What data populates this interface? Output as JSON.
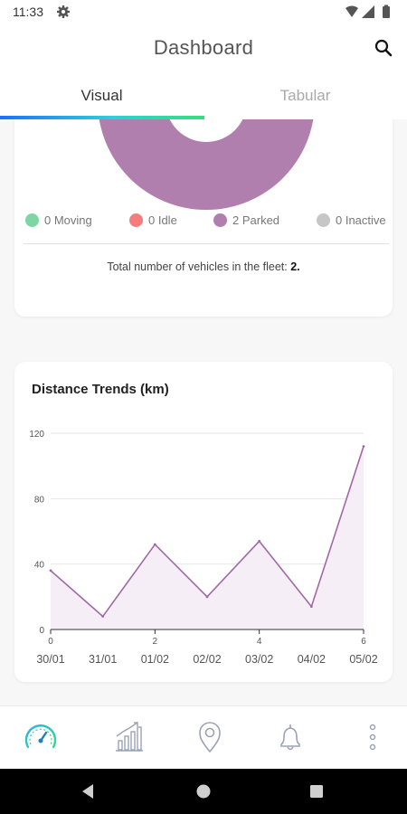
{
  "status_bar": {
    "time": "11:33",
    "icons": [
      "gear-icon",
      "wifi-icon",
      "signal-icon",
      "battery-icon"
    ]
  },
  "app_bar": {
    "title": "Dashboard",
    "action_icon": "search-icon"
  },
  "tabs": [
    {
      "label": "Visual",
      "selected": true
    },
    {
      "label": "Tabular",
      "selected": false
    }
  ],
  "colors": {
    "moving": "#7ed6a5",
    "idle": "#f47c7c",
    "parked": "#b07fad",
    "inactive": "#c6c6c6",
    "line": "#a069a6",
    "area": "#f6eef6",
    "tab_indicator_start": "#1e6fff",
    "tab_indicator_end": "#35e07a"
  },
  "fleet_status": {
    "legend": [
      {
        "label": "0 Moving",
        "key": "moving"
      },
      {
        "label": "0 Idle",
        "key": "idle"
      },
      {
        "label": "2 Parked",
        "key": "parked"
      },
      {
        "label": "0 Inactive",
        "key": "inactive"
      }
    ],
    "total_label": "Total number of vehicles in the fleet:",
    "total_value": "2."
  },
  "chart_data": {
    "type": "area",
    "title": "Distance Trends (km)",
    "x": [
      0,
      1,
      2,
      3,
      4,
      5,
      6
    ],
    "categories": [
      "30/01",
      "31/01",
      "01/02",
      "02/02",
      "03/02",
      "04/02",
      "05/02"
    ],
    "x_ticks": [
      0,
      2,
      4,
      6
    ],
    "values": [
      36,
      8,
      52,
      20,
      54,
      14,
      112
    ],
    "ylim": [
      0,
      120
    ],
    "y_ticks": [
      0,
      40,
      80,
      120
    ],
    "grid": true,
    "legend": "none"
  },
  "bottom_nav": [
    {
      "icon": "speedometer-icon",
      "active": true
    },
    {
      "icon": "bar-chart-icon",
      "active": false
    },
    {
      "icon": "location-pin-icon",
      "active": false
    },
    {
      "icon": "bell-icon",
      "active": false
    },
    {
      "icon": "more-vertical-icon",
      "active": false
    }
  ],
  "system_nav": [
    "back-icon",
    "home-icon",
    "recents-icon"
  ]
}
